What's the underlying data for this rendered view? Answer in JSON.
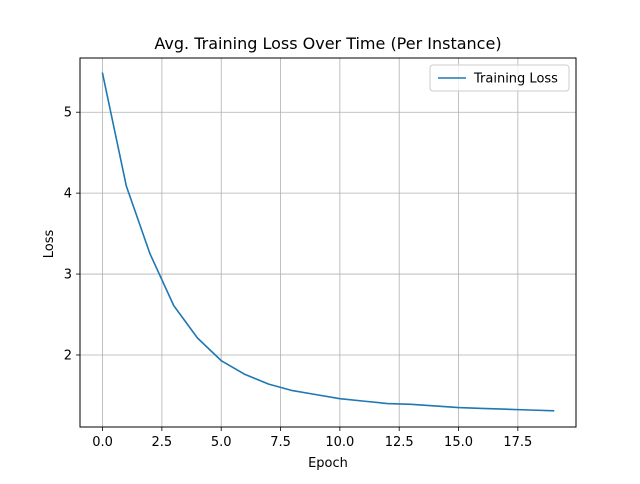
{
  "chart_data": {
    "type": "line",
    "title": "Avg. Training Loss Over Time (Per Instance)",
    "xlabel": "Epoch",
    "ylabel": "Loss",
    "xlim": [
      -0.95,
      19.95
    ],
    "ylim": [
      1.11,
      5.67
    ],
    "x_ticks": [
      0,
      2.5,
      5,
      7.5,
      10,
      12.5,
      15,
      17.5
    ],
    "x_tick_labels": [
      "0.0",
      "2.5",
      "5.0",
      "7.5",
      "10.0",
      "12.5",
      "15.0",
      "17.5"
    ],
    "y_ticks": [
      2,
      3,
      4,
      5
    ],
    "y_tick_labels": [
      "2",
      "3",
      "4",
      "5"
    ],
    "grid": true,
    "legend_position": "top-right",
    "series": [
      {
        "name": "Training Loss",
        "color": "#1f77b4",
        "x": [
          0,
          1,
          2,
          3,
          4,
          5,
          6,
          7,
          8,
          9,
          10,
          11,
          12,
          13,
          14,
          15,
          16,
          17,
          18,
          19
        ],
        "y": [
          5.48,
          4.09,
          3.25,
          2.61,
          2.21,
          1.93,
          1.76,
          1.64,
          1.56,
          1.51,
          1.46,
          1.43,
          1.4,
          1.39,
          1.37,
          1.35,
          1.34,
          1.33,
          1.32,
          1.31
        ]
      }
    ]
  }
}
